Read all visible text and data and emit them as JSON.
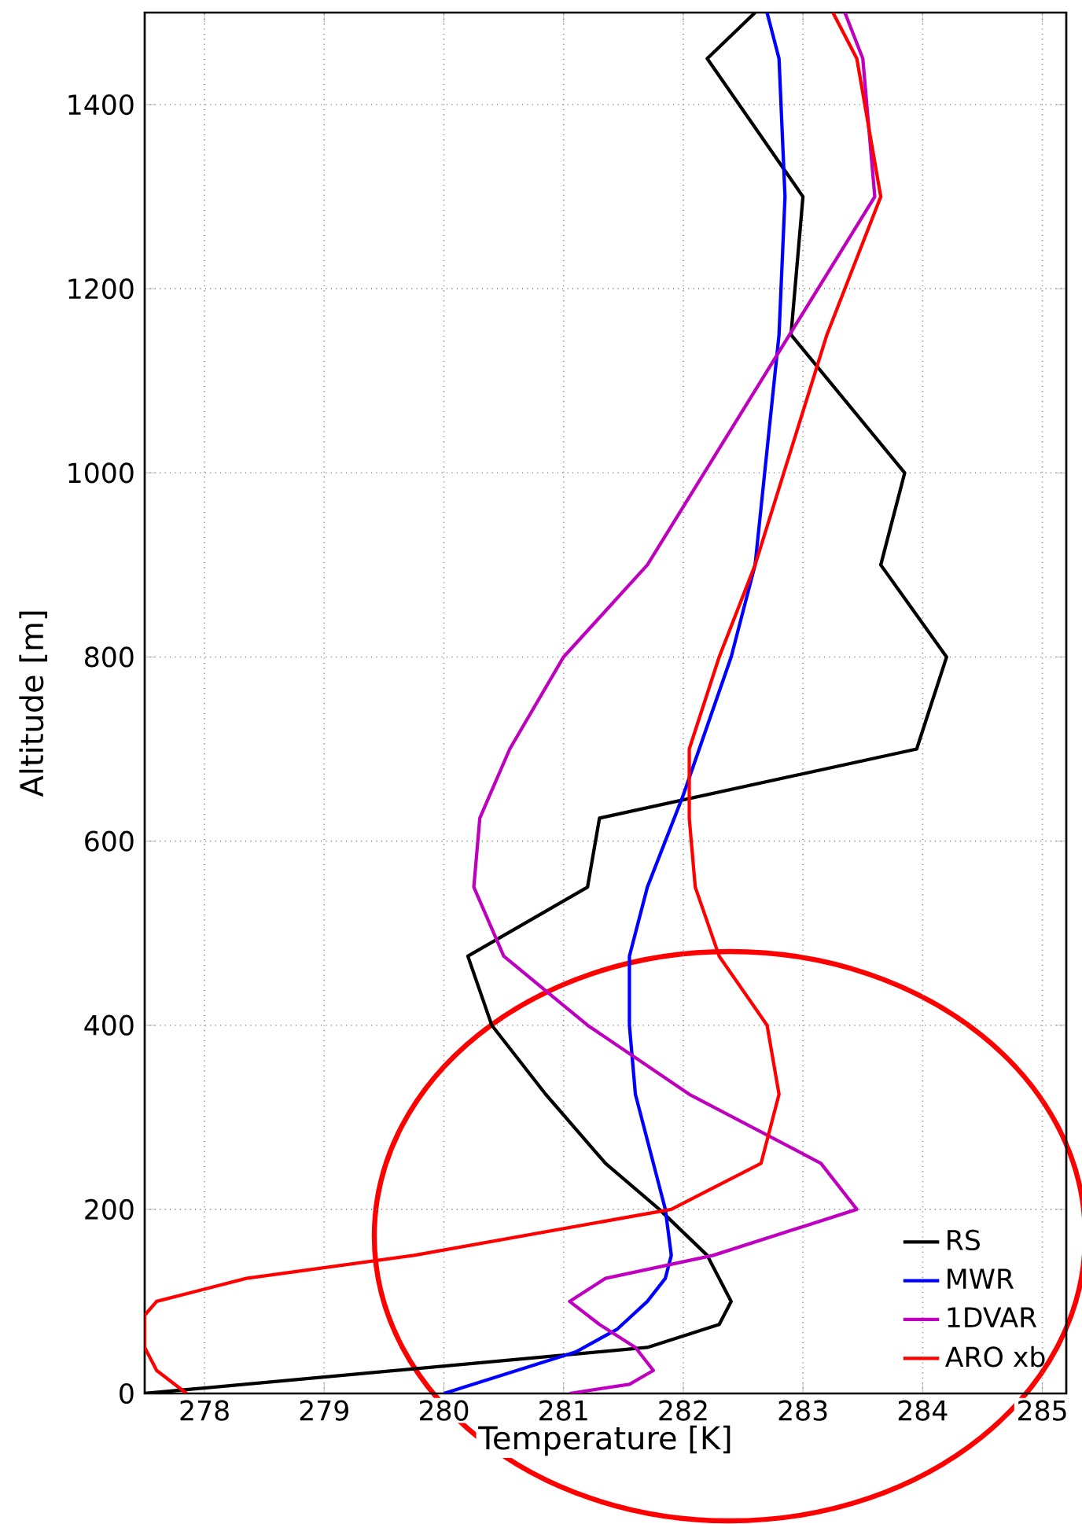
{
  "chart_data": {
    "type": "line",
    "xlabel": "Temperature [K]",
    "ylabel": "Altitude [m]",
    "xlim": [
      277.5,
      285.2
    ],
    "ylim": [
      0,
      1500
    ],
    "xticks": [
      278,
      279,
      280,
      281,
      282,
      283,
      284,
      285
    ],
    "yticks": [
      0,
      200,
      400,
      600,
      800,
      1000,
      1200,
      1400
    ],
    "grid": true,
    "legend": "bottom right",
    "line_style": "solid",
    "marker": "none",
    "series": [
      {
        "name": "RS",
        "color": "#000000",
        "x": [
          277.5,
          281.7,
          282.3,
          282.4,
          282.3,
          282.2,
          281.8,
          281.35,
          280.85,
          280.4,
          280.2,
          281.2,
          281.3,
          283.95,
          284.2,
          283.65,
          283.85,
          282.9,
          283.0,
          282.2,
          282.6
        ],
        "values": [
          0,
          50,
          75,
          100,
          125,
          150,
          200,
          250,
          325,
          400,
          475,
          550,
          625,
          700,
          800,
          900,
          1000,
          1150,
          1300,
          1450,
          1500
        ]
      },
      {
        "name": "MWR",
        "color": "#0000ff",
        "x": [
          280.0,
          281.1,
          281.45,
          281.7,
          281.85,
          281.9,
          281.85,
          281.6,
          281.55,
          281.55,
          281.7,
          282.0,
          282.4,
          282.6,
          282.8,
          282.85,
          282.8,
          282.7
        ],
        "values": [
          0,
          45,
          70,
          100,
          125,
          150,
          200,
          325,
          400,
          475,
          550,
          650,
          800,
          900,
          1150,
          1300,
          1450,
          1500
        ]
      },
      {
        "name": "1DVAR",
        "color": "#bf00bf",
        "x": [
          281.05,
          281.55,
          281.75,
          281.6,
          281.3,
          281.05,
          281.35,
          282.25,
          283.45,
          283.15,
          282.05,
          281.2,
          280.5,
          280.25,
          280.3,
          280.55,
          281.0,
          281.7,
          283.6,
          283.5,
          283.35
        ],
        "values": [
          0,
          10,
          25,
          50,
          75,
          100,
          125,
          150,
          200,
          250,
          325,
          400,
          475,
          550,
          625,
          700,
          800,
          900,
          1300,
          1450,
          1500
        ]
      },
      {
        "name": "ARO xb",
        "color": "#ff0000",
        "x": [
          277.85,
          277.6,
          277.5,
          277.5,
          277.6,
          278.35,
          279.75,
          281.9,
          282.65,
          282.8,
          282.7,
          282.3,
          282.1,
          282.05,
          282.05,
          282.3,
          282.6,
          283.2,
          283.65,
          283.45,
          283.25
        ],
        "values": [
          0,
          25,
          50,
          85,
          100,
          125,
          150,
          200,
          250,
          325,
          400,
          475,
          550,
          625,
          700,
          800,
          900,
          1150,
          1300,
          1450,
          1500
        ]
      }
    ]
  }
}
